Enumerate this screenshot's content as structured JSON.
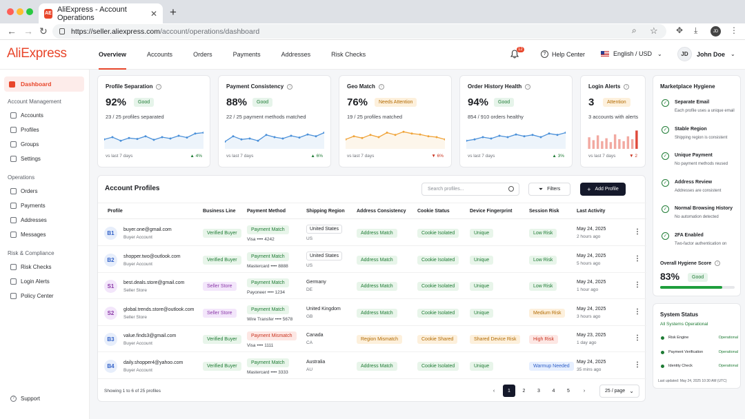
{
  "browser": {
    "tab_title": "AliExpress - Account Operations",
    "favicon_text": "AE",
    "url_host": "https://seller.aliexpress.com",
    "url_path": "/account/operations/dashboard",
    "profile_initials": "JD"
  },
  "app": {
    "logo": "AliExpress",
    "nav": [
      "Overview",
      "Accounts",
      "Orders",
      "Payments",
      "Addresses",
      "Risk Checks"
    ],
    "active_nav": "Overview",
    "notifications_count": "12",
    "help_label": "Help Center",
    "language_label": "English / USD",
    "user_initials": "JD",
    "user_name": "John Doe"
  },
  "sidebar": {
    "dashboard": "Dashboard",
    "sections": [
      {
        "title": "Account Management",
        "items": [
          "Accounts",
          "Profiles",
          "Groups",
          "Settings"
        ]
      },
      {
        "title": "Operations",
        "items": [
          "Orders",
          "Payments",
          "Addresses",
          "Messages"
        ]
      },
      {
        "title": "Risk & Compliance",
        "items": [
          "Risk Checks",
          "Login Alerts",
          "Policy Center"
        ]
      }
    ],
    "support": "Support"
  },
  "kpis": [
    {
      "title": "Profile Separation",
      "value": "92%",
      "badge": "Good",
      "badge_type": "good",
      "sub": "23 / 25 profiles separated",
      "foot": "vs last 7 days",
      "delta": "▲ 4%",
      "dir": "up",
      "spark_color": "#4a90d9",
      "spark": [
        0.45,
        0.5,
        0.42,
        0.48,
        0.46,
        0.52,
        0.44,
        0.5,
        0.47,
        0.53,
        0.49,
        0.58,
        0.6
      ]
    },
    {
      "title": "Payment Consistency",
      "value": "88%",
      "badge": "Good",
      "badge_type": "good",
      "sub": "22 / 25 payment methods matched",
      "foot": "vs last 7 days",
      "delta": "▲ 6%",
      "dir": "up",
      "spark_color": "#4a90d9",
      "spark": [
        0.4,
        0.52,
        0.45,
        0.47,
        0.42,
        0.55,
        0.5,
        0.47,
        0.53,
        0.49,
        0.56,
        0.52,
        0.6
      ]
    },
    {
      "title": "Geo Match",
      "value": "76%",
      "badge": "Needs Attention",
      "badge_type": "att",
      "sub": "19 / 25 profiles matched",
      "foot": "vs last 7 days",
      "delta": "▼ 6%",
      "dir": "down",
      "spark_color": "#f0a43a",
      "spark": [
        0.45,
        0.52,
        0.48,
        0.55,
        0.5,
        0.6,
        0.55,
        0.62,
        0.58,
        0.56,
        0.52,
        0.5,
        0.45
      ]
    },
    {
      "title": "Order History Health",
      "value": "94%",
      "badge": "Good",
      "badge_type": "good",
      "sub": "854 / 910 orders healthy",
      "foot": "vs last 7 days",
      "delta": "▲ 3%",
      "dir": "up",
      "spark_color": "#4a90d9",
      "spark": [
        0.42,
        0.45,
        0.5,
        0.47,
        0.53,
        0.5,
        0.56,
        0.52,
        0.55,
        0.5,
        0.58,
        0.55,
        0.6
      ]
    },
    {
      "title": "Login Alerts",
      "value": "3",
      "badge": "Attention",
      "badge_type": "att",
      "sub": "3 accounts with alerts",
      "foot": "vs last 7 days",
      "delta": "▼ 2",
      "dir": "down",
      "bars": [
        0.6,
        0.45,
        0.7,
        0.4,
        0.55,
        0.35,
        0.75,
        0.5,
        0.4,
        0.65,
        0.5,
        0.95
      ]
    }
  ],
  "table": {
    "title": "Account Profiles",
    "search_placeholder": "Search profiles...",
    "filters_label": "Filters",
    "add_label": "Add Profile",
    "columns": [
      "Profile",
      "Business Line",
      "Payment Method",
      "Shipping Region",
      "Address Consistency",
      "Cookie Status",
      "Device Fingerprint",
      "Session Risk",
      "Last Activity"
    ],
    "rows": [
      {
        "initials": "B1",
        "av": "b",
        "email": "buyer.one@gmail.com",
        "role": "Buyer Account",
        "line": "Verified Buyer",
        "line_t": "grn",
        "pay_badge": "Payment Match",
        "pay_t": "grn",
        "pay_detail": "Visa •••• 4242",
        "region": "United States",
        "region_code": "US",
        "region_box": true,
        "addr": "Address Match",
        "addr_t": "grn",
        "cookie": "Cookie Isolated",
        "cookie_t": "grn",
        "device": "Unique",
        "device_t": "grn",
        "risk": "Low Risk",
        "risk_t": "grn",
        "date": "May 24, 2025",
        "ago": "2 hours ago"
      },
      {
        "initials": "B2",
        "av": "b",
        "email": "shopper.two@outlook.com",
        "role": "Buyer Account",
        "line": "Verified Buyer",
        "line_t": "grn",
        "pay_badge": "Payment Match",
        "pay_t": "grn",
        "pay_detail": "Mastercard •••• 8888",
        "region": "United States",
        "region_code": "US",
        "region_box": true,
        "addr": "Address Match",
        "addr_t": "grn",
        "cookie": "Cookie Isolated",
        "cookie_t": "grn",
        "device": "Unique",
        "device_t": "grn",
        "risk": "Low Risk",
        "risk_t": "grn",
        "date": "May 24, 2025",
        "ago": "5 hours ago"
      },
      {
        "initials": "S1",
        "av": "s",
        "email": "best.deals.store@gmail.com",
        "role": "Seller Store",
        "line": "Seller Store",
        "line_t": "purple",
        "pay_badge": "Payment Match",
        "pay_t": "grn",
        "pay_detail": "Payoneer •••• 1234",
        "region": "Germany",
        "region_code": "DE",
        "region_box": false,
        "addr": "Address Match",
        "addr_t": "grn",
        "cookie": "Cookie Isolated",
        "cookie_t": "grn",
        "device": "Unique",
        "device_t": "grn",
        "risk": "Low Risk",
        "risk_t": "grn",
        "date": "May 24, 2025",
        "ago": "1 hour ago"
      },
      {
        "initials": "S2",
        "av": "s",
        "email": "global.trends.store@outlook.com",
        "role": "Seller Store",
        "line": "Seller Store",
        "line_t": "purple",
        "pay_badge": "Payment Match",
        "pay_t": "grn",
        "pay_detail": "Wire Transfer •••• 5678",
        "region": "United Kingdom",
        "region_code": "GB",
        "region_box": false,
        "addr": "Address Match",
        "addr_t": "grn",
        "cookie": "Cookie Isolated",
        "cookie_t": "grn",
        "device": "Unique",
        "device_t": "grn",
        "risk": "Medium Risk",
        "risk_t": "att",
        "date": "May 24, 2025",
        "ago": "3 hours ago"
      },
      {
        "initials": "B3",
        "av": "b",
        "email": "value.finds3@gmail.com",
        "role": "Buyer Account",
        "line": "Verified Buyer",
        "line_t": "grn",
        "pay_badge": "Payment Mismatch",
        "pay_t": "red",
        "pay_detail": "Visa •••• 1111",
        "region": "Canada",
        "region_code": "CA",
        "region_box": false,
        "addr": "Region Mismatch",
        "addr_t": "att",
        "cookie": "Cookie Shared",
        "cookie_t": "att",
        "device": "Shared Device Risk",
        "device_t": "att",
        "risk": "High Risk",
        "risk_t": "red",
        "date": "May 23, 2025",
        "ago": "1 day ago"
      },
      {
        "initials": "B4",
        "av": "b",
        "email": "daily.shopper4@yahoo.com",
        "role": "Buyer Account",
        "line": "Verified Buyer",
        "line_t": "grn",
        "pay_badge": "Payment Match",
        "pay_t": "grn",
        "pay_detail": "Mastercard •••• 3333",
        "region": "Australia",
        "region_code": "AU",
        "region_box": false,
        "addr": "Address Match",
        "addr_t": "grn",
        "cookie": "Cookie Isolated",
        "cookie_t": "grn",
        "device": "Unique",
        "device_t": "grn",
        "risk": "Warmup Needed",
        "risk_t": "blue",
        "date": "May 24, 2025",
        "ago": "35 mins ago"
      }
    ],
    "footer": "Showing 1 to 6 of 25 profiles",
    "pages": [
      "1",
      "2",
      "3",
      "4",
      "5"
    ],
    "current_page": "1",
    "per_page": "25 / page"
  },
  "hygiene": {
    "title": "Marketplace Hygiene",
    "items": [
      {
        "title": "Separate Email",
        "desc": "Each profile uses a unique email"
      },
      {
        "title": "Stable Region",
        "desc": "Shipping region is consistent"
      },
      {
        "title": "Unique Payment",
        "desc": "No payment methods reused"
      },
      {
        "title": "Address Review",
        "desc": "Addresses are consistent"
      },
      {
        "title": "Normal Browsing History",
        "desc": "No automation detected"
      },
      {
        "title": "2FA Enabled",
        "desc": "Two-factor authentication on"
      }
    ],
    "score_label": "Overall Hygiene Score",
    "score_value": "83%",
    "score_badge": "Good",
    "score_fraction": 0.83
  },
  "system": {
    "title": "System Status",
    "summary": "All Systems Operational",
    "items": [
      {
        "name": "Risk Engine",
        "status": "Operational"
      },
      {
        "name": "Payment Verification",
        "status": "Operational"
      },
      {
        "name": "Identity Check",
        "status": "Operational"
      }
    ],
    "updated": "Last updated: May 24, 2025 10:30 AM (UTC)"
  }
}
